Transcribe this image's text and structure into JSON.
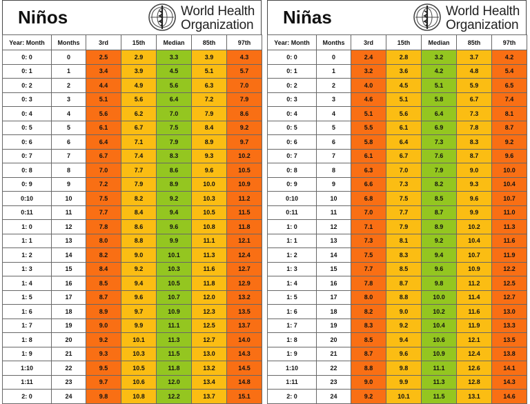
{
  "colors": {
    "p3_p97": "#f96f14",
    "p15_p85": "#fbbd13",
    "median": "#94c620"
  },
  "who": {
    "line1": "World Health",
    "line2": "Organization",
    "icon": "who-emblem-icon"
  },
  "headers": [
    "Year: Month",
    "Months",
    "3rd",
    "15th",
    "Median",
    "85th",
    "97th"
  ],
  "boys": {
    "title": "Niños",
    "rows": [
      [
        "0: 0",
        "0",
        "2.5",
        "2.9",
        "3.3",
        "3.9",
        "4.3"
      ],
      [
        "0: 1",
        "1",
        "3.4",
        "3.9",
        "4.5",
        "5.1",
        "5.7"
      ],
      [
        "0: 2",
        "2",
        "4.4",
        "4.9",
        "5.6",
        "6.3",
        "7.0"
      ],
      [
        "0: 3",
        "3",
        "5.1",
        "5.6",
        "6.4",
        "7.2",
        "7.9"
      ],
      [
        "0: 4",
        "4",
        "5.6",
        "6.2",
        "7.0",
        "7.9",
        "8.6"
      ],
      [
        "0: 5",
        "5",
        "6.1",
        "6.7",
        "7.5",
        "8.4",
        "9.2"
      ],
      [
        "0: 6",
        "6",
        "6.4",
        "7.1",
        "7.9",
        "8.9",
        "9.7"
      ],
      [
        "0: 7",
        "7",
        "6.7",
        "7.4",
        "8.3",
        "9.3",
        "10.2"
      ],
      [
        "0: 8",
        "8",
        "7.0",
        "7.7",
        "8.6",
        "9.6",
        "10.5"
      ],
      [
        "0: 9",
        "9",
        "7.2",
        "7.9",
        "8.9",
        "10.0",
        "10.9"
      ],
      [
        "0:10",
        "10",
        "7.5",
        "8.2",
        "9.2",
        "10.3",
        "11.2"
      ],
      [
        "0:11",
        "11",
        "7.7",
        "8.4",
        "9.4",
        "10.5",
        "11.5"
      ],
      [
        "1: 0",
        "12",
        "7.8",
        "8.6",
        "9.6",
        "10.8",
        "11.8"
      ],
      [
        "1: 1",
        "13",
        "8.0",
        "8.8",
        "9.9",
        "11.1",
        "12.1"
      ],
      [
        "1: 2",
        "14",
        "8.2",
        "9.0",
        "10.1",
        "11.3",
        "12.4"
      ],
      [
        "1: 3",
        "15",
        "8.4",
        "9.2",
        "10.3",
        "11.6",
        "12.7"
      ],
      [
        "1: 4",
        "16",
        "8.5",
        "9.4",
        "10.5",
        "11.8",
        "12.9"
      ],
      [
        "1: 5",
        "17",
        "8.7",
        "9.6",
        "10.7",
        "12.0",
        "13.2"
      ],
      [
        "1: 6",
        "18",
        "8.9",
        "9.7",
        "10.9",
        "12.3",
        "13.5"
      ],
      [
        "1: 7",
        "19",
        "9.0",
        "9.9",
        "11.1",
        "12.5",
        "13.7"
      ],
      [
        "1: 8",
        "20",
        "9.2",
        "10.1",
        "11.3",
        "12.7",
        "14.0"
      ],
      [
        "1: 9",
        "21",
        "9.3",
        "10.3",
        "11.5",
        "13.0",
        "14.3"
      ],
      [
        "1:10",
        "22",
        "9.5",
        "10.5",
        "11.8",
        "13.2",
        "14.5"
      ],
      [
        "1:11",
        "23",
        "9.7",
        "10.6",
        "12.0",
        "13.4",
        "14.8"
      ],
      [
        "2: 0",
        "24",
        "9.8",
        "10.8",
        "12.2",
        "13.7",
        "15.1"
      ]
    ]
  },
  "girls": {
    "title": "Niñas",
    "rows": [
      [
        "0: 0",
        "0",
        "2.4",
        "2.8",
        "3.2",
        "3.7",
        "4.2"
      ],
      [
        "0: 1",
        "1",
        "3.2",
        "3.6",
        "4.2",
        "4.8",
        "5.4"
      ],
      [
        "0: 2",
        "2",
        "4.0",
        "4.5",
        "5.1",
        "5.9",
        "6.5"
      ],
      [
        "0: 3",
        "3",
        "4.6",
        "5.1",
        "5.8",
        "6.7",
        "7.4"
      ],
      [
        "0: 4",
        "4",
        "5.1",
        "5.6",
        "6.4",
        "7.3",
        "8.1"
      ],
      [
        "0: 5",
        "5",
        "5.5",
        "6.1",
        "6.9",
        "7.8",
        "8.7"
      ],
      [
        "0: 6",
        "6",
        "5.8",
        "6.4",
        "7.3",
        "8.3",
        "9.2"
      ],
      [
        "0: 7",
        "7",
        "6.1",
        "6.7",
        "7.6",
        "8.7",
        "9.6"
      ],
      [
        "0: 8",
        "8",
        "6.3",
        "7.0",
        "7.9",
        "9.0",
        "10.0"
      ],
      [
        "0: 9",
        "9",
        "6.6",
        "7.3",
        "8.2",
        "9.3",
        "10.4"
      ],
      [
        "0:10",
        "10",
        "6.8",
        "7.5",
        "8.5",
        "9.6",
        "10.7"
      ],
      [
        "0:11",
        "11",
        "7.0",
        "7.7",
        "8.7",
        "9.9",
        "11.0"
      ],
      [
        "1: 0",
        "12",
        "7.1",
        "7.9",
        "8.9",
        "10.2",
        "11.3"
      ],
      [
        "1: 1",
        "13",
        "7.3",
        "8.1",
        "9.2",
        "10.4",
        "11.6"
      ],
      [
        "1: 2",
        "14",
        "7.5",
        "8.3",
        "9.4",
        "10.7",
        "11.9"
      ],
      [
        "1: 3",
        "15",
        "7.7",
        "8.5",
        "9.6",
        "10.9",
        "12.2"
      ],
      [
        "1: 4",
        "16",
        "7.8",
        "8.7",
        "9.8",
        "11.2",
        "12.5"
      ],
      [
        "1: 5",
        "17",
        "8.0",
        "8.8",
        "10.0",
        "11.4",
        "12.7"
      ],
      [
        "1: 6",
        "18",
        "8.2",
        "9.0",
        "10.2",
        "11.6",
        "13.0"
      ],
      [
        "1: 7",
        "19",
        "8.3",
        "9.2",
        "10.4",
        "11.9",
        "13.3"
      ],
      [
        "1: 8",
        "20",
        "8.5",
        "9.4",
        "10.6",
        "12.1",
        "13.5"
      ],
      [
        "1: 9",
        "21",
        "8.7",
        "9.6",
        "10.9",
        "12.4",
        "13.8"
      ],
      [
        "1:10",
        "22",
        "8.8",
        "9.8",
        "11.1",
        "12.6",
        "14.1"
      ],
      [
        "1:11",
        "23",
        "9.0",
        "9.9",
        "11.3",
        "12.8",
        "14.3"
      ],
      [
        "2: 0",
        "24",
        "9.2",
        "10.1",
        "11.5",
        "13.1",
        "14.6"
      ]
    ]
  }
}
